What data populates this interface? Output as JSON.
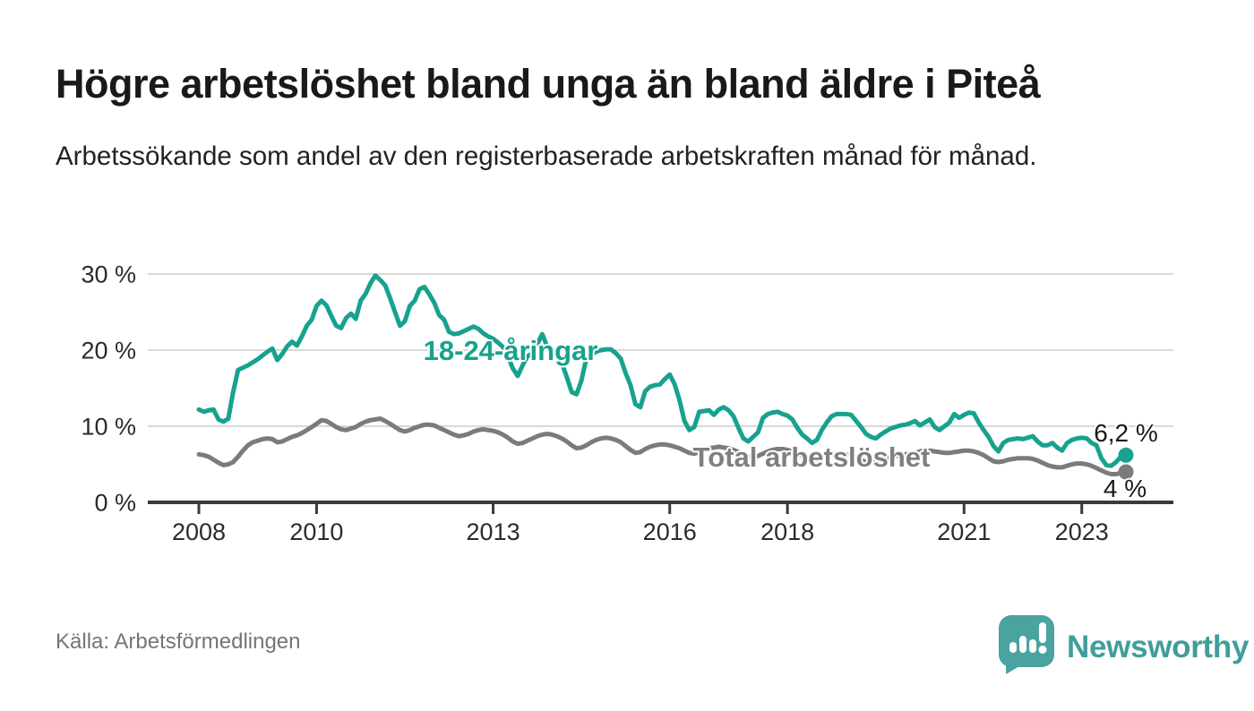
{
  "header": {
    "title": "Högre arbetslöshet bland unga än bland äldre i Piteå",
    "subtitle": "Arbetssökande som andel av den registerbaserade arbetskraften månad för månad."
  },
  "footer": {
    "source": "Källa: Arbetsförmedlingen",
    "brand": "Newsworthy"
  },
  "colors": {
    "young_line": "#17a28e",
    "total_line": "#7b7b7b",
    "gridline": "#d9d9d9",
    "axis": "#3a3a3a",
    "annotation_text": "#1a1a1a",
    "brand_teal": "#4aa39f"
  },
  "chart_data": {
    "type": "line",
    "title": "Högre arbetslöshet bland unga än bland äldre i Piteå",
    "subtitle": "Arbetssökande som andel av den registerbaserade arbetskraften månad för månad.",
    "unit": "%",
    "frequency": "monthly",
    "x_start": "2008-01",
    "x_end": "2023-10",
    "ylim": [
      0,
      32
    ],
    "grid": true,
    "legend_position": "inline-labels",
    "y_ticks": [
      {
        "value": 0,
        "label": "0 %"
      },
      {
        "value": 10,
        "label": "10 %"
      },
      {
        "value": 20,
        "label": "20 %"
      },
      {
        "value": 30,
        "label": "30 %"
      }
    ],
    "x_ticks": [
      {
        "year": 2008,
        "label": "2008"
      },
      {
        "year": 2010,
        "label": "2010"
      },
      {
        "year": 2013,
        "label": "2013"
      },
      {
        "year": 2016,
        "label": "2016"
      },
      {
        "year": 2018,
        "label": "2018"
      },
      {
        "year": 2021,
        "label": "2021"
      },
      {
        "year": 2023,
        "label": "2023"
      }
    ],
    "series": [
      {
        "name": "18-24-åringar",
        "color": "#17a28e",
        "end_label": "6,2 %",
        "end_value": 6.2,
        "values": [
          12.2,
          11.9,
          12.1,
          12.2,
          10.9,
          10.6,
          11.0,
          14.5,
          17.4,
          17.7,
          18.0,
          18.4,
          18.8,
          19.3,
          19.8,
          20.2,
          18.7,
          19.5,
          20.5,
          21.1,
          20.6,
          21.8,
          23.2,
          24.0,
          25.8,
          26.5,
          25.9,
          24.5,
          23.2,
          22.9,
          24.2,
          24.8,
          24.1,
          26.5,
          27.4,
          28.8,
          29.8,
          29.2,
          28.5,
          26.8,
          25.0,
          23.2,
          23.8,
          25.8,
          26.5,
          28.0,
          28.3,
          27.3,
          26.2,
          24.6,
          24.0,
          22.4,
          22.1,
          22.2,
          22.5,
          22.8,
          23.1,
          22.8,
          22.2,
          21.8,
          21.5,
          21.0,
          20.4,
          19.2,
          17.6,
          16.6,
          18.0,
          19.2,
          19.6,
          20.8,
          22.1,
          20.5,
          19.9,
          19.5,
          18.3,
          16.5,
          14.5,
          14.2,
          16.0,
          18.9,
          19.4,
          19.8,
          20.0,
          20.1,
          20.1,
          19.6,
          18.9,
          17.0,
          15.4,
          12.9,
          12.5,
          14.6,
          15.2,
          15.4,
          15.5,
          16.2,
          16.8,
          15.5,
          13.4,
          10.7,
          9.5,
          9.9,
          11.9,
          12.0,
          12.1,
          11.5,
          12.2,
          12.5,
          12.1,
          11.3,
          9.8,
          8.4,
          8.0,
          8.6,
          9.2,
          11.1,
          11.6,
          11.8,
          11.9,
          11.6,
          11.4,
          10.9,
          9.8,
          8.9,
          8.4,
          7.8,
          8.2,
          9.5,
          10.5,
          11.3,
          11.6,
          11.6,
          11.6,
          11.5,
          10.7,
          9.9,
          9.0,
          8.6,
          8.4,
          8.9,
          9.3,
          9.7,
          9.9,
          10.1,
          10.2,
          10.4,
          10.7,
          10.1,
          10.5,
          10.9,
          9.9,
          9.5,
          10.0,
          10.5,
          11.6,
          11.1,
          11.5,
          11.8,
          11.7,
          10.5,
          9.5,
          8.6,
          7.4,
          6.7,
          7.8,
          8.2,
          8.3,
          8.4,
          8.3,
          8.5,
          8.7,
          8.0,
          7.5,
          7.5,
          7.8,
          7.2,
          6.8,
          7.8,
          8.2,
          8.4,
          8.5,
          8.4,
          7.8,
          7.5,
          5.8,
          4.9,
          4.8,
          5.3,
          6.0,
          6.2
        ]
      },
      {
        "name": "Total arbetslöshet",
        "color": "#7b7b7b",
        "end_label": "4 %",
        "end_value": 4.0,
        "values": [
          6.3,
          6.2,
          6.0,
          5.6,
          5.2,
          4.9,
          5.0,
          5.3,
          6.0,
          6.8,
          7.5,
          7.9,
          8.1,
          8.3,
          8.4,
          8.3,
          7.9,
          8.0,
          8.3,
          8.6,
          8.8,
          9.1,
          9.5,
          9.9,
          10.3,
          10.8,
          10.7,
          10.3,
          9.9,
          9.6,
          9.5,
          9.7,
          9.9,
          10.3,
          10.6,
          10.8,
          10.9,
          11.0,
          10.7,
          10.3,
          9.9,
          9.5,
          9.3,
          9.5,
          9.8,
          10.0,
          10.2,
          10.2,
          10.1,
          9.8,
          9.5,
          9.2,
          8.9,
          8.7,
          8.8,
          9.0,
          9.3,
          9.5,
          9.6,
          9.5,
          9.4,
          9.2,
          8.9,
          8.5,
          8.0,
          7.7,
          7.8,
          8.1,
          8.4,
          8.7,
          8.9,
          9.0,
          8.9,
          8.7,
          8.4,
          8.0,
          7.5,
          7.1,
          7.2,
          7.5,
          7.9,
          8.2,
          8.4,
          8.5,
          8.4,
          8.2,
          7.9,
          7.4,
          6.9,
          6.5,
          6.6,
          7.0,
          7.3,
          7.5,
          7.6,
          7.6,
          7.5,
          7.3,
          7.1,
          6.8,
          6.5,
          6.4,
          6.6,
          6.9,
          7.1,
          7.2,
          7.3,
          7.2,
          7.1,
          6.9,
          6.6,
          6.3,
          6.0,
          5.9,
          6.1,
          6.4,
          6.7,
          6.9,
          7.0,
          7.0,
          6.9,
          6.7,
          6.4,
          6.1,
          5.7,
          5.5,
          5.6,
          5.9,
          6.1,
          6.3,
          6.4,
          6.4,
          6.3,
          6.1,
          5.9,
          5.6,
          5.3,
          5.2,
          5.3,
          5.6,
          5.8,
          6.0,
          6.1,
          6.2,
          6.3,
          6.4,
          6.5,
          6.7,
          6.8,
          6.8,
          6.7,
          6.6,
          6.5,
          6.5,
          6.6,
          6.7,
          6.8,
          6.8,
          6.7,
          6.5,
          6.2,
          5.8,
          5.4,
          5.3,
          5.4,
          5.6,
          5.7,
          5.8,
          5.8,
          5.8,
          5.7,
          5.5,
          5.2,
          4.9,
          4.7,
          4.6,
          4.6,
          4.8,
          5.0,
          5.1,
          5.1,
          5.0,
          4.8,
          4.5,
          4.2,
          3.9,
          3.7,
          3.7,
          3.9,
          4.0
        ]
      }
    ]
  }
}
